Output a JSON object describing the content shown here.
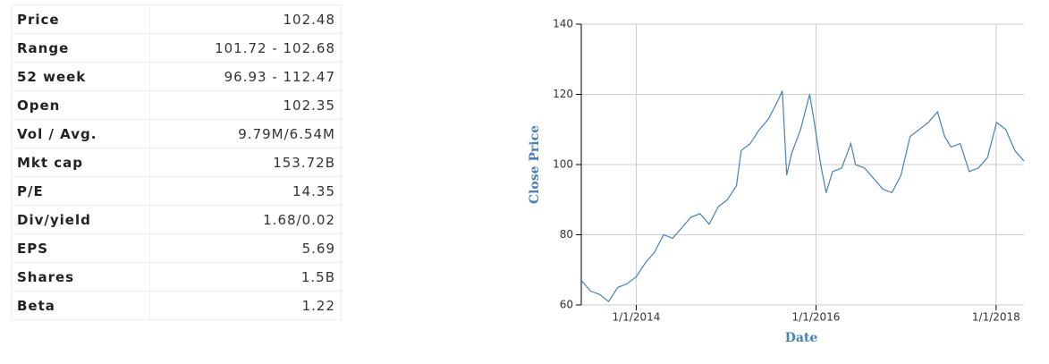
{
  "table": {
    "rows": [
      [
        "Price",
        "102.48"
      ],
      [
        "Range",
        "101.72 - 102.68"
      ],
      [
        "52 week",
        "96.93 - 112.47"
      ],
      [
        "Open",
        "102.35"
      ],
      [
        "Vol / Avg.",
        "9.79M/6.54M"
      ],
      [
        "Mkt cap",
        "153.72B"
      ],
      [
        "P/E",
        "14.35"
      ],
      [
        "Div/yield",
        "1.68/0.02"
      ],
      [
        "EPS",
        "5.69"
      ],
      [
        "Shares",
        "1.5B"
      ],
      [
        "Beta",
        "1.22"
      ]
    ]
  },
  "chart_data": {
    "type": "line",
    "xlabel": "Date",
    "ylabel": "Close Price",
    "color": "#4682b4",
    "grid": true,
    "x": [
      "2013-05-23",
      "2013-06-29",
      "2013-08-05",
      "2013-09-11",
      "2013-10-18",
      "2013-11-24",
      "2014-01-01",
      "2014-02-07",
      "2014-03-16",
      "2014-04-22",
      "2014-05-29",
      "2014-07-05",
      "2014-08-11",
      "2014-09-17",
      "2014-10-24",
      "2014-11-30",
      "2015-01-06",
      "2015-02-12",
      "2015-03-03",
      "2015-04-09",
      "2015-05-16",
      "2015-06-22",
      "2015-07-29",
      "2015-08-17",
      "2015-09-04",
      "2015-09-23",
      "2015-10-30",
      "2015-12-06",
      "2015-12-25",
      "2016-01-20",
      "2016-02-11",
      "2016-03-08",
      "2016-04-14",
      "2016-05-21",
      "2016-06-09",
      "2016-07-16",
      "2016-08-22",
      "2016-09-28",
      "2016-11-04",
      "2016-12-11",
      "2017-01-17",
      "2017-02-23",
      "2017-04-01",
      "2017-05-08",
      "2017-06-06",
      "2017-07-02",
      "2017-08-08",
      "2017-09-14",
      "2017-10-21",
      "2017-11-27",
      "2018-01-03",
      "2018-02-09",
      "2018-03-18",
      "2018-04-24"
    ],
    "values": [
      67,
      64,
      63,
      61,
      65,
      66,
      68,
      72,
      75,
      80,
      79,
      82,
      85,
      86,
      83,
      88,
      90,
      94,
      104,
      106,
      110,
      113,
      118,
      121,
      97,
      103,
      110,
      120,
      112,
      100,
      92,
      98,
      99,
      106,
      100,
      99,
      96,
      93,
      92,
      97,
      108,
      110,
      112,
      115,
      108,
      105,
      106,
      98,
      99,
      102,
      112,
      110,
      104,
      101
    ],
    "xlim": [
      "2013-05-23",
      "2018-04-24"
    ],
    "xticks": [
      {
        "value": "2014-01-01",
        "label": "1/1/2014"
      },
      {
        "value": "2016-01-01",
        "label": "1/1/2016"
      },
      {
        "value": "2018-01-01",
        "label": "1/1/2018"
      }
    ],
    "ylim": [
      60,
      140
    ],
    "yticks": [
      60,
      80,
      100,
      120,
      140
    ]
  }
}
